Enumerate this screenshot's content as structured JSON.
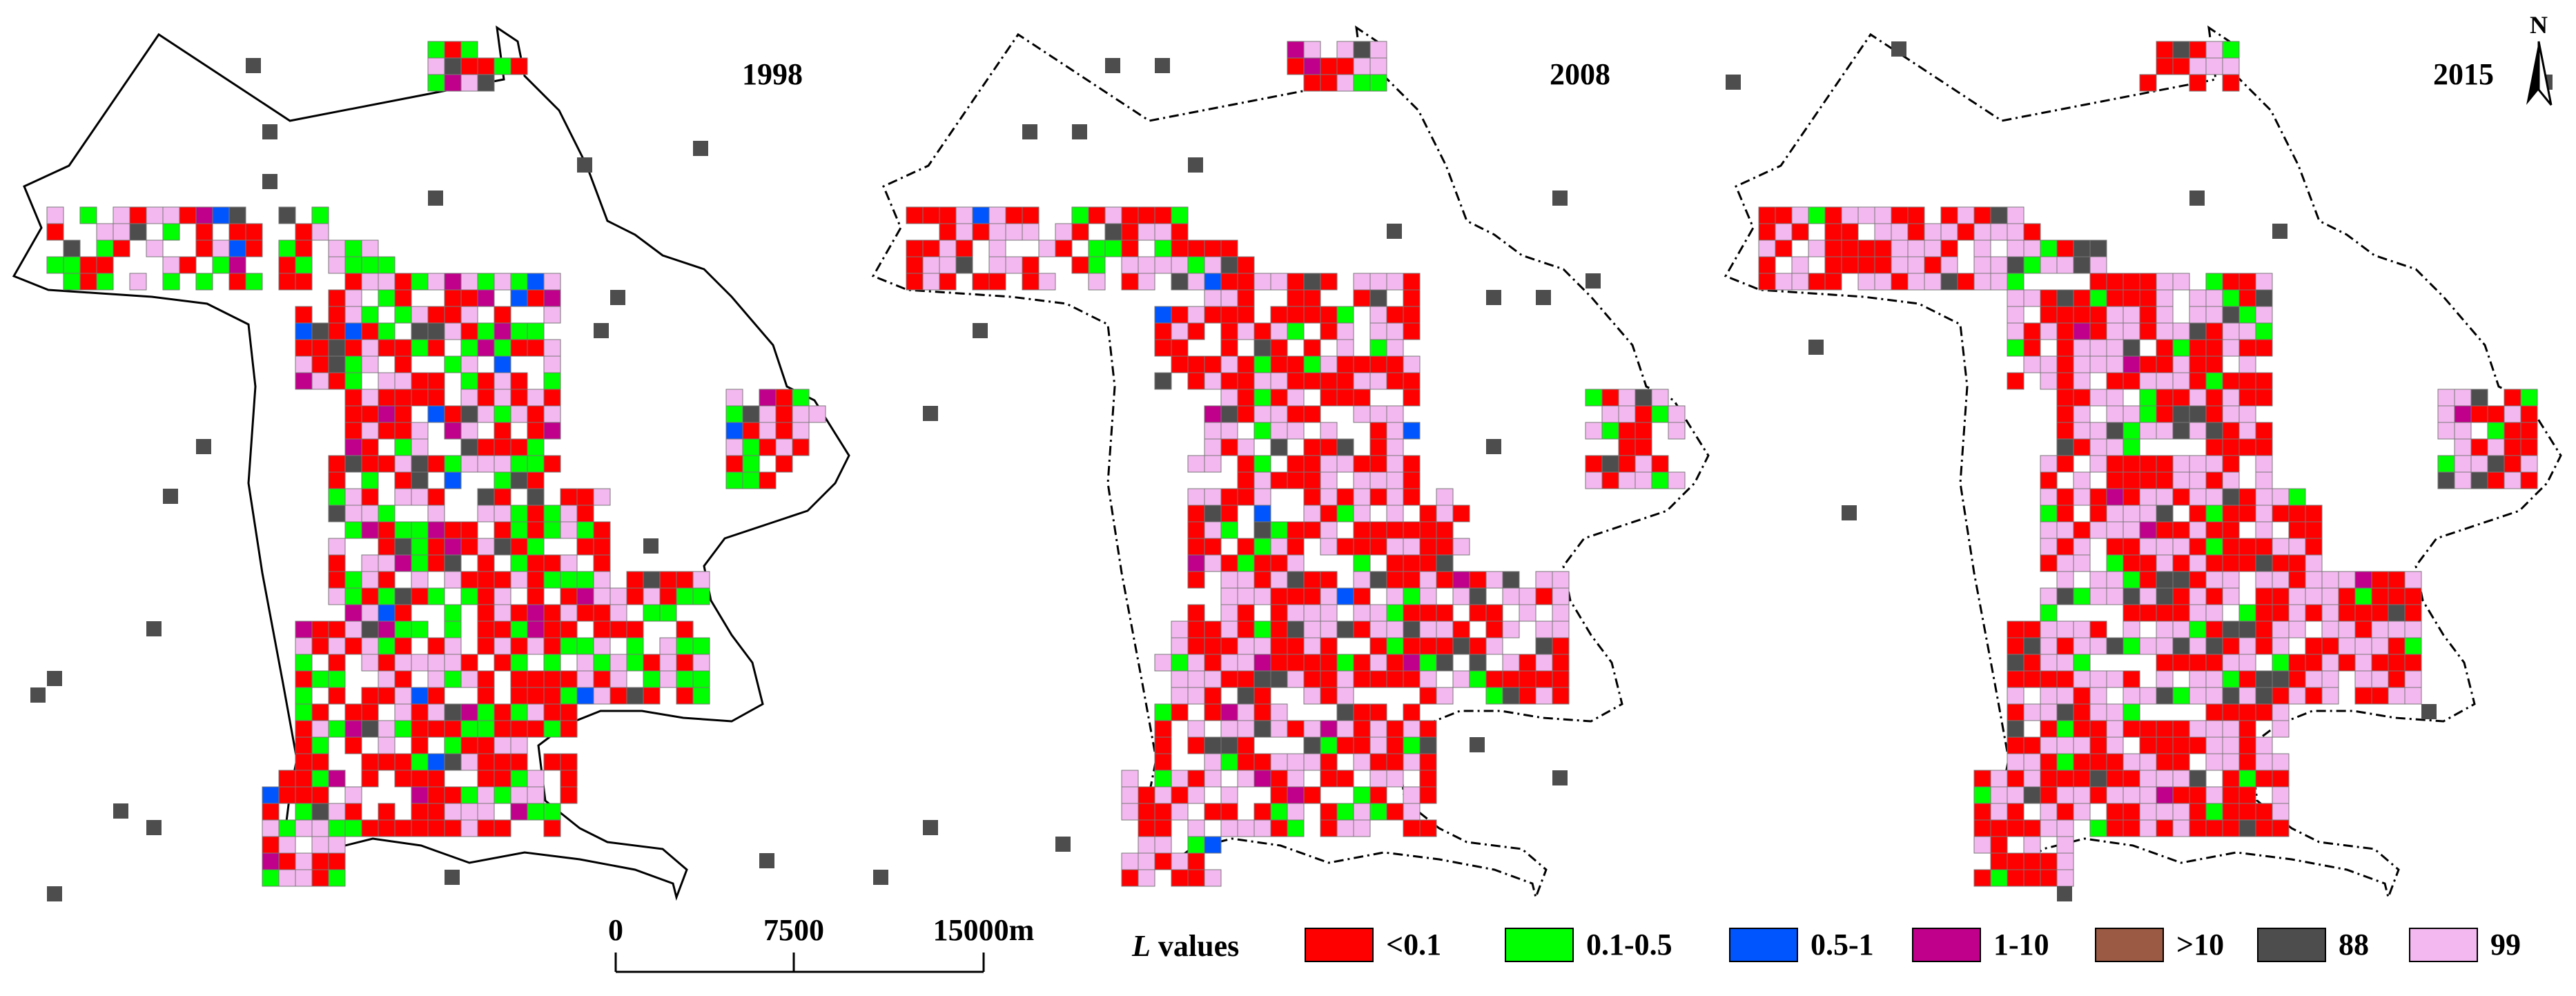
{
  "panels": [
    {
      "year": "1998"
    },
    {
      "year": "2008"
    },
    {
      "year": "2015"
    }
  ],
  "north_arrow": {
    "label": "N"
  },
  "scale_bar": {
    "ticks": [
      "0",
      "7500",
      "15000m"
    ]
  },
  "legend": {
    "title_var": "L",
    "title_rest": " values",
    "items": [
      {
        "label": "<0.1",
        "color": "#ff0000"
      },
      {
        "label": "0.1-0.5",
        "color": "#00ff00"
      },
      {
        "label": "0.5-1",
        "color": "#0055ff"
      },
      {
        "label": "1-10",
        "color": "#c0008a"
      },
      {
        "label": ">10",
        "color": "#9b5a43"
      },
      {
        "label": "88",
        "color": "#4d4d4d"
      },
      {
        "label": "99",
        "color": "#f4b8f0"
      }
    ]
  }
}
